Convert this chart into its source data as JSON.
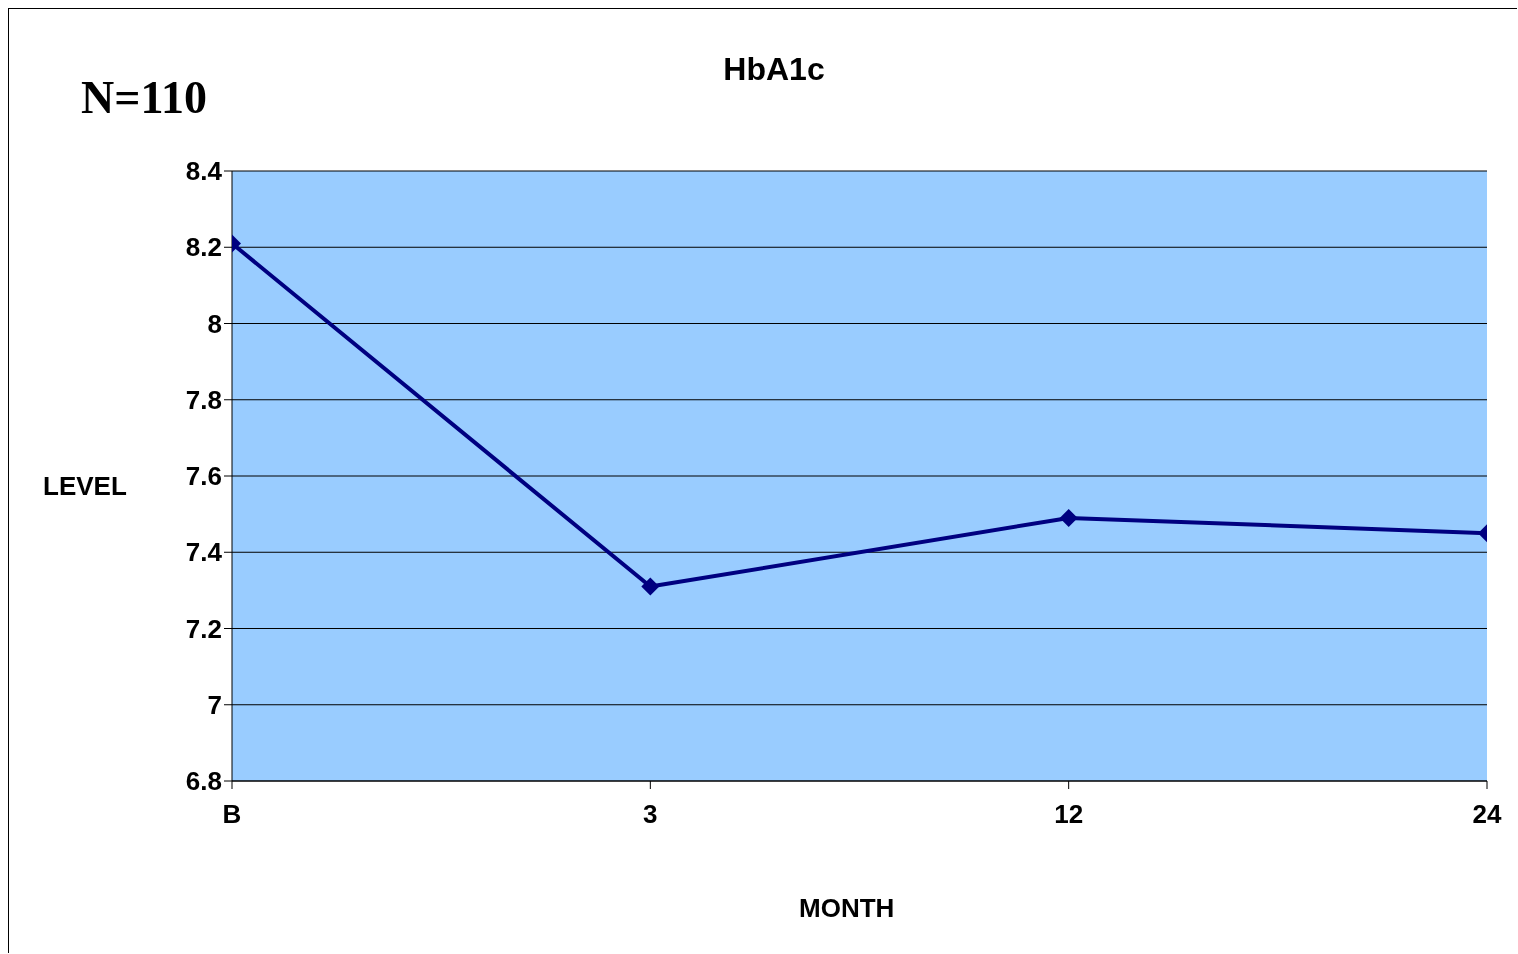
{
  "chart_data": {
    "type": "line",
    "title": "HbA1c",
    "xlabel": "MONTH",
    "ylabel": "LEVEL",
    "annotations": [
      "N=110"
    ],
    "categories": [
      "B",
      "3",
      "12",
      "24"
    ],
    "series": [
      {
        "color": "#000080",
        "values": [
          8.21,
          7.31,
          7.49,
          7.45
        ]
      }
    ],
    "ylim": [
      6.8,
      8.4
    ],
    "yticks": [
      6.8,
      7,
      7.2,
      7.4,
      7.6,
      7.8,
      8,
      8.2,
      8.4
    ],
    "grid": "y",
    "legend": false,
    "marker": "diamond",
    "line_style": "solid"
  }
}
